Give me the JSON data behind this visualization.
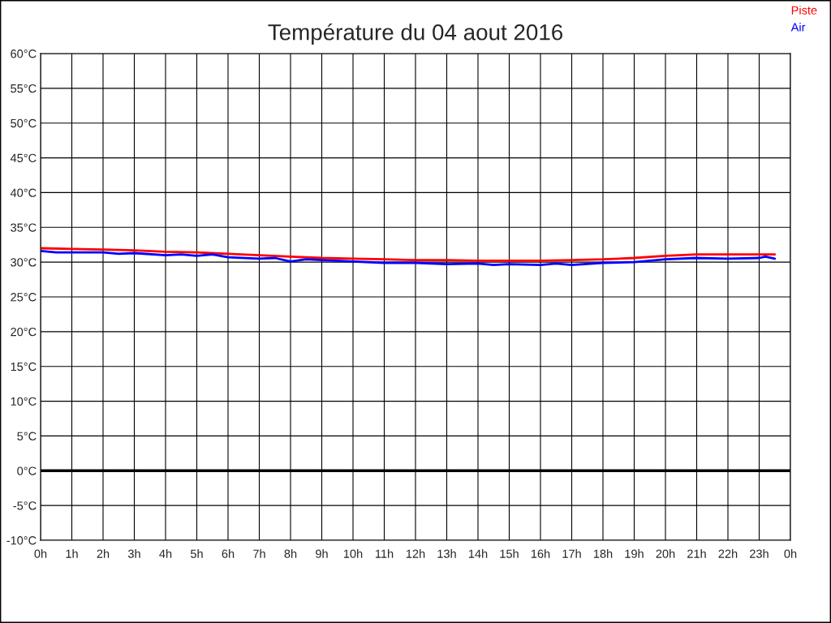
{
  "chart_data": {
    "type": "line",
    "title": "Température du 04 aout 2016",
    "series": [
      {
        "name": "Piste",
        "color": "#ff0000",
        "x": [
          "2016-08-04T00:00",
          "2016-08-04T01:00",
          "2016-08-04T02:00",
          "2016-08-04T03:00",
          "2016-08-04T04:00",
          "2016-08-04T05:00",
          "2016-08-04T06:00",
          "2016-08-04T07:00",
          "2016-08-04T08:00",
          "2016-08-04T09:00",
          "2016-08-04T10:00",
          "2016-08-04T11:00",
          "2016-08-04T12:00",
          "2016-08-04T13:00",
          "2016-08-04T14:00",
          "2016-08-04T15:00",
          "2016-08-04T16:00",
          "2016-08-04T17:00",
          "2016-08-04T18:00",
          "2016-08-04T19:00",
          "2016-08-04T20:00",
          "2016-08-04T21:00",
          "2016-08-04T22:00",
          "2016-08-04T23:00",
          "2016-08-04T23:30"
        ],
        "values": [
          32.0,
          31.9,
          31.8,
          31.7,
          31.5,
          31.4,
          31.2,
          31.0,
          30.8,
          30.6,
          30.5,
          30.4,
          30.3,
          30.3,
          30.2,
          30.2,
          30.2,
          30.3,
          30.4,
          30.6,
          30.9,
          31.1,
          31.1,
          31.1,
          31.1
        ]
      },
      {
        "name": "Air",
        "color": "#0000ff",
        "x": [
          "2016-08-04T00:00",
          "2016-08-04T00:30",
          "2016-08-04T01:00",
          "2016-08-04T02:00",
          "2016-08-04T02:30",
          "2016-08-04T03:00",
          "2016-08-04T04:00",
          "2016-08-04T04:30",
          "2016-08-04T05:00",
          "2016-08-04T05:30",
          "2016-08-04T06:00",
          "2016-08-04T07:00",
          "2016-08-04T07:30",
          "2016-08-04T08:00",
          "2016-08-04T08:30",
          "2016-08-04T09:00",
          "2016-08-04T10:00",
          "2016-08-04T11:00",
          "2016-08-04T12:00",
          "2016-08-04T13:00",
          "2016-08-04T14:00",
          "2016-08-04T14:30",
          "2016-08-04T15:00",
          "2016-08-04T16:00",
          "2016-08-04T16:30",
          "2016-08-04T17:00",
          "2016-08-04T18:00",
          "2016-08-04T19:00",
          "2016-08-04T19:30",
          "2016-08-04T20:00",
          "2016-08-04T21:00",
          "2016-08-04T22:00",
          "2016-08-04T23:00",
          "2016-08-04T23:12",
          "2016-08-04T23:30"
        ],
        "values": [
          31.6,
          31.4,
          31.4,
          31.4,
          31.2,
          31.3,
          31.0,
          31.1,
          30.9,
          31.1,
          30.7,
          30.5,
          30.6,
          30.1,
          30.4,
          30.3,
          30.1,
          29.9,
          29.9,
          29.7,
          29.8,
          29.6,
          29.7,
          29.6,
          29.8,
          29.6,
          29.9,
          30.0,
          30.2,
          30.4,
          30.6,
          30.5,
          30.6,
          30.8,
          30.5
        ]
      }
    ],
    "xlim": [
      "2016-08-04T00:00",
      "2016-08-05T00:00"
    ],
    "xticks": [
      {
        "value": "2016-08-04T00:00",
        "label": "0h"
      },
      {
        "value": "2016-08-04T01:00",
        "label": "1h"
      },
      {
        "value": "2016-08-04T02:00",
        "label": "2h"
      },
      {
        "value": "2016-08-04T03:00",
        "label": "3h"
      },
      {
        "value": "2016-08-04T04:00",
        "label": "4h"
      },
      {
        "value": "2016-08-04T05:00",
        "label": "5h"
      },
      {
        "value": "2016-08-04T06:00",
        "label": "6h"
      },
      {
        "value": "2016-08-04T07:00",
        "label": "7h"
      },
      {
        "value": "2016-08-04T08:00",
        "label": "8h"
      },
      {
        "value": "2016-08-04T09:00",
        "label": "9h"
      },
      {
        "value": "2016-08-04T10:00",
        "label": "10h"
      },
      {
        "value": "2016-08-04T11:00",
        "label": "11h"
      },
      {
        "value": "2016-08-04T12:00",
        "label": "12h"
      },
      {
        "value": "2016-08-04T13:00",
        "label": "13h"
      },
      {
        "value": "2016-08-04T14:00",
        "label": "14h"
      },
      {
        "value": "2016-08-04T15:00",
        "label": "15h"
      },
      {
        "value": "2016-08-04T16:00",
        "label": "16h"
      },
      {
        "value": "2016-08-04T17:00",
        "label": "17h"
      },
      {
        "value": "2016-08-04T18:00",
        "label": "18h"
      },
      {
        "value": "2016-08-04T19:00",
        "label": "19h"
      },
      {
        "value": "2016-08-04T20:00",
        "label": "20h"
      },
      {
        "value": "2016-08-04T21:00",
        "label": "21h"
      },
      {
        "value": "2016-08-04T22:00",
        "label": "22h"
      },
      {
        "value": "2016-08-04T23:00",
        "label": "23h"
      },
      {
        "value": "2016-08-05T00:00",
        "label": "0h"
      }
    ],
    "ylim": [
      -10,
      60
    ],
    "yticks": [
      {
        "value": -10,
        "label": "-10°C"
      },
      {
        "value": -5,
        "label": "-5°C"
      },
      {
        "value": 0,
        "label": "0°C"
      },
      {
        "value": 5,
        "label": "5°C"
      },
      {
        "value": 10,
        "label": "10°C"
      },
      {
        "value": 15,
        "label": "15°C"
      },
      {
        "value": 20,
        "label": "20°C"
      },
      {
        "value": 25,
        "label": "25°C"
      },
      {
        "value": 30,
        "label": "30°C"
      },
      {
        "value": 35,
        "label": "35°C"
      },
      {
        "value": 40,
        "label": "40°C"
      },
      {
        "value": 45,
        "label": "45°C"
      },
      {
        "value": 50,
        "label": "50°C"
      },
      {
        "value": 55,
        "label": "55°C"
      },
      {
        "value": 60,
        "label": "60°C"
      }
    ],
    "ref_lines": [
      {
        "axis": "y",
        "value": 0,
        "color": "#000000"
      }
    ],
    "grid": true,
    "legend": "top right"
  }
}
